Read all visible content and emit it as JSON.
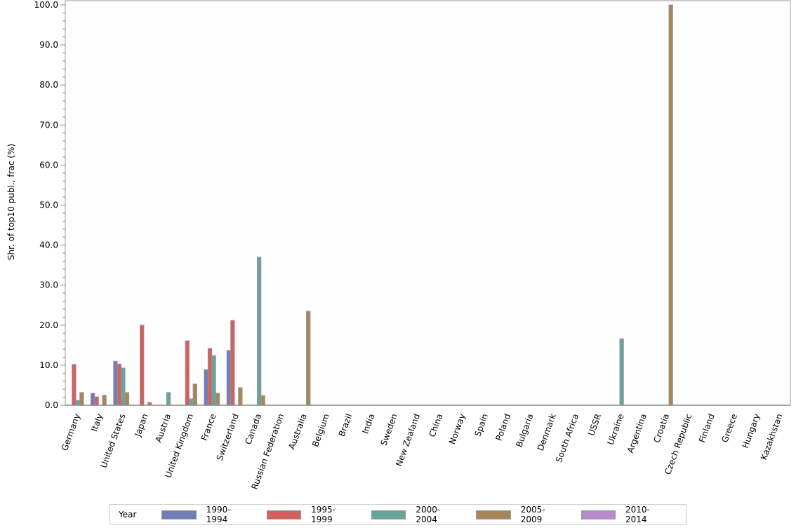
{
  "chart_data": {
    "type": "bar",
    "title": "",
    "xlabel": "",
    "ylabel": "Shr. of top10 publ., frac (%)",
    "ylim": [
      0,
      100
    ],
    "yticks": [
      "0.0",
      "10.0",
      "20.0",
      "30.0",
      "40.0",
      "50.0",
      "60.0",
      "70.0",
      "80.0",
      "90.0",
      "100.0"
    ],
    "grid": false,
    "legend_position": "bottom",
    "legend_title": "Year",
    "categories": [
      "Germany",
      "Italy",
      "United States",
      "Japan",
      "Austria",
      "United Kingdom",
      "France",
      "Switzerland",
      "Canada",
      "Russian Federation",
      "Australia",
      "Belgium",
      "Brazil",
      "India",
      "Sweden",
      "New Zealand",
      "China",
      "Norway",
      "Spain",
      "Poland",
      "Bulgaria",
      "Denmark",
      "South Africa",
      "USSR",
      "Ukraine",
      "Argentina",
      "Croatia",
      "Czech Republic",
      "Finland",
      "Greece",
      "Hungary",
      "Kazakhstan"
    ],
    "series": [
      {
        "name": "1990-1994",
        "color": "#6f7fb6",
        "values": [
          0,
          3.0,
          11.0,
          0,
          0,
          0,
          8.9,
          13.7,
          0,
          0,
          0,
          0,
          0,
          0,
          0,
          0,
          0,
          0,
          0,
          0,
          0,
          0,
          0,
          0,
          0,
          0,
          0,
          0,
          0,
          0,
          0,
          0
        ]
      },
      {
        "name": "1995-1999",
        "color": "#d35f5f",
        "values": [
          10.2,
          2.1,
          10.3,
          20.0,
          0,
          16.1,
          14.2,
          21.2,
          0,
          0,
          0,
          0,
          0,
          0,
          0,
          0,
          0,
          0,
          0,
          0,
          0,
          0,
          0,
          0,
          0,
          0,
          0,
          0,
          0,
          0,
          0,
          0
        ]
      },
      {
        "name": "2000-2004",
        "color": "#66a59c",
        "values": [
          1.2,
          0,
          9.3,
          0,
          3.2,
          1.6,
          12.4,
          0,
          37.0,
          0,
          0,
          0,
          0,
          0,
          0,
          0,
          0,
          0,
          0,
          0,
          0,
          0,
          0,
          0,
          16.6,
          0,
          0,
          0,
          0,
          0,
          0,
          0
        ]
      },
      {
        "name": "2005-2009",
        "color": "#a8865c",
        "values": [
          3.2,
          2.5,
          3.2,
          0.7,
          0,
          5.3,
          3.0,
          4.4,
          2.4,
          0,
          23.5,
          0,
          0,
          0,
          0,
          0,
          0,
          0,
          0,
          0,
          0,
          0,
          0,
          0,
          0,
          0,
          100.0,
          0,
          0,
          0,
          0,
          0
        ]
      },
      {
        "name": "2010-2014",
        "color": "#b98acb",
        "values": [
          0,
          0,
          0,
          0,
          0,
          0,
          0,
          0,
          0,
          0,
          0,
          0,
          0,
          0,
          0,
          0,
          0,
          0,
          0,
          0,
          0,
          0,
          0,
          0,
          0,
          0,
          0,
          0,
          0,
          0,
          0,
          0
        ]
      }
    ]
  }
}
